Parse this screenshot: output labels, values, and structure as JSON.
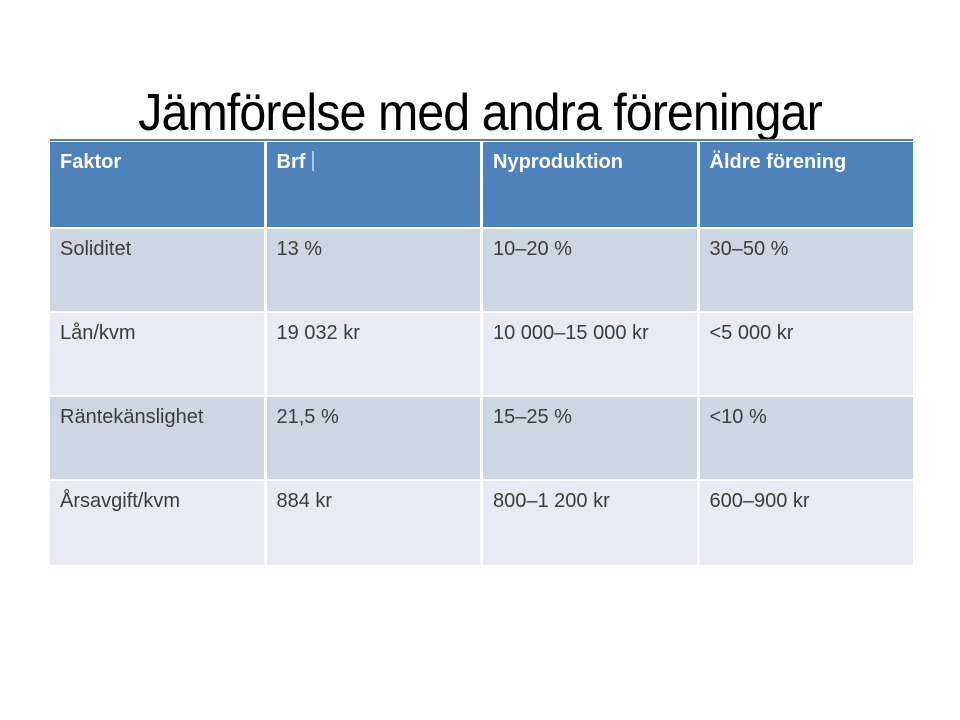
{
  "slide": {
    "title": "Jämförelse med andra föreningar"
  },
  "table": {
    "columns": [
      "Faktor",
      "Brf",
      "Nyproduktion",
      "Äldre förening"
    ],
    "rows": [
      [
        "Soliditet",
        "13 %",
        "10–20 %",
        "30–50 %"
      ],
      [
        "Lån/kvm",
        "19 032 kr",
        "10 000–15 000 kr",
        "<5 000 kr"
      ],
      [
        "Räntekänslighet",
        "21,5 %",
        "15–25 %",
        "<10 %"
      ],
      [
        "Årsavgift/kvm",
        "884 kr",
        "800–1 200 kr",
        "600–900 kr"
      ]
    ]
  },
  "colors": {
    "header_bg": "#4f81bd",
    "row_band_a": "#cfd6e3",
    "row_band_b": "#e8ebf3",
    "table_top_border": "#5e7fa7",
    "header_text": "#ffffff",
    "body_text": "#3c3c3c"
  }
}
